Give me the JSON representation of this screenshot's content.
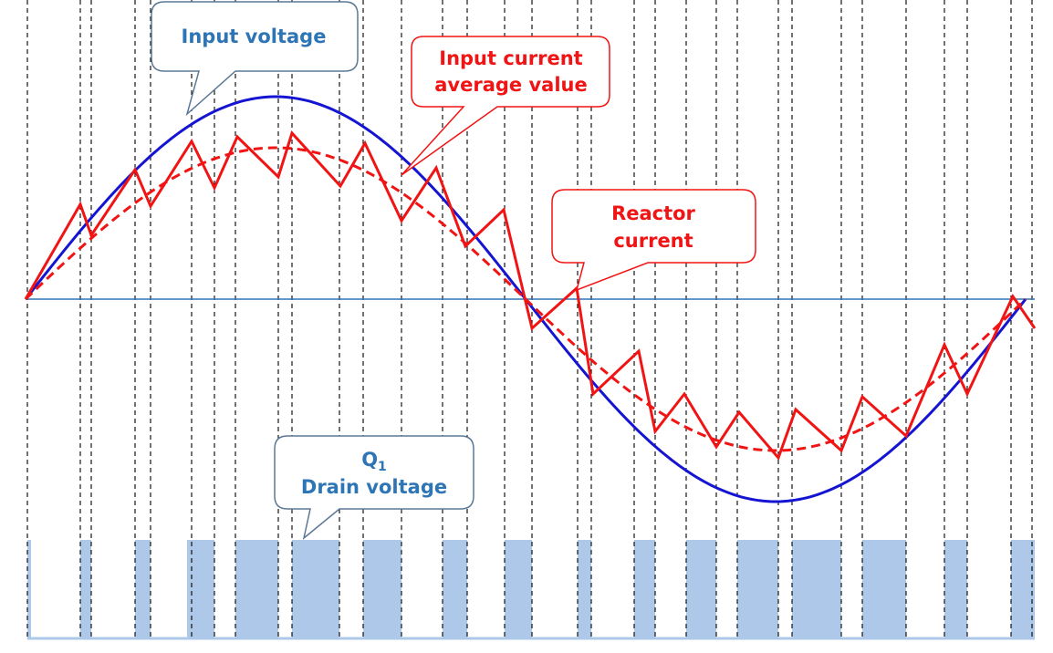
{
  "labels": {
    "input_voltage": "Input voltage",
    "input_current_average_line1": "Input current",
    "input_current_average_line2": "average value",
    "reactor_current_line1": "Reactor",
    "reactor_current_line2": "current",
    "drain_q": "Q",
    "drain_q_subscript": "1",
    "drain_line2": "Drain voltage"
  },
  "colors": {
    "input_voltage": "#1414d2",
    "input_current": "#f01414",
    "axis": "#2e75b6",
    "drain_pulse": "#adc8e8",
    "blue_text": "#2e75b6",
    "red_text": "#f01414",
    "blue_callout_border": "#5b7896",
    "red_callout_border": "#f01414"
  }
}
